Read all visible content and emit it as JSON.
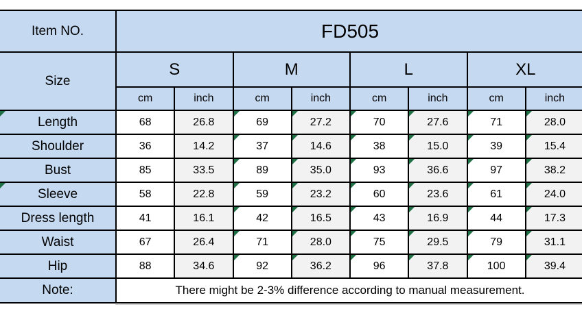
{
  "colors": {
    "header_bg": "#c5d9f1",
    "inch_col_bg": "#f2f2f2",
    "cm_col_bg": "#ffffff",
    "border": "#000000",
    "flag_triangle": "#1f7145"
  },
  "table": {
    "item_label": "Item NO.",
    "item_value": "FD505",
    "size_label": "Size",
    "sizes": [
      "S",
      "M",
      "L",
      "XL"
    ],
    "unit_labels": [
      "cm",
      "inch"
    ],
    "rows": [
      {
        "label": "Length",
        "values": [
          "68",
          "26.8",
          "69",
          "27.2",
          "70",
          "27.6",
          "71",
          "28.0"
        ]
      },
      {
        "label": "Shoulder",
        "values": [
          "36",
          "14.2",
          "37",
          "14.6",
          "38",
          "15.0",
          "39",
          "15.4"
        ]
      },
      {
        "label": "Bust",
        "values": [
          "85",
          "33.5",
          "89",
          "35.0",
          "93",
          "36.6",
          "97",
          "38.2"
        ]
      },
      {
        "label": "Sleeve",
        "values": [
          "58",
          "22.8",
          "59",
          "23.2",
          "60",
          "23.6",
          "61",
          "24.0"
        ]
      },
      {
        "label": "Dress length",
        "values": [
          "41",
          "16.1",
          "42",
          "16.5",
          "43",
          "16.9",
          "44",
          "17.3"
        ]
      },
      {
        "label": "Waist",
        "values": [
          "67",
          "26.4",
          "71",
          "28.0",
          "75",
          "29.5",
          "79",
          "31.1"
        ]
      },
      {
        "label": "Hip",
        "values": [
          "88",
          "34.6",
          "92",
          "36.2",
          "96",
          "37.8",
          "100",
          "39.4"
        ]
      }
    ],
    "note_label": "Note:",
    "note_text": "There might be 2-3% difference according to manual measurement."
  }
}
